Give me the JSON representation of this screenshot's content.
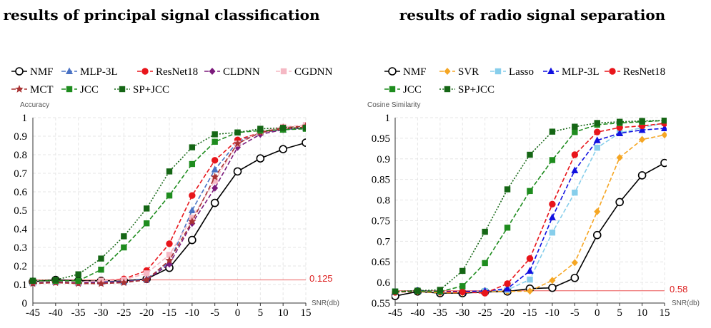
{
  "chart_data": [
    {
      "type": "line",
      "title": "results of principal signal classification",
      "ylabel": "Accuracy",
      "xlabel": "SNR(db)",
      "x": [
        -45,
        -40,
        -35,
        -30,
        -25,
        -20,
        -15,
        -10,
        -5,
        0,
        5,
        10,
        15
      ],
      "xticks": [
        "-45",
        "-40",
        "-35",
        "-30",
        "-25",
        "-20",
        "-15",
        "-10",
        "-5",
        "0",
        "5",
        "10",
        "15"
      ],
      "yticks": [
        "0",
        "0.1",
        "0.2",
        "0.3",
        "0.4",
        "0.5",
        "0.6",
        "0.7",
        "0.8",
        "0.9",
        "1"
      ],
      "xlim": [
        -45,
        15
      ],
      "ylim": [
        0,
        1
      ],
      "grid": true,
      "legend_position": "top",
      "reference_line": {
        "value": 0.125,
        "label": "0.125",
        "color": "#f08080"
      },
      "series": [
        {
          "name": "NMF",
          "color": "#000000",
          "dash": "solid",
          "marker": "circle-open",
          "values": [
            0.115,
            0.125,
            0.12,
            0.12,
            0.12,
            0.13,
            0.19,
            0.34,
            0.54,
            0.71,
            0.78,
            0.83,
            0.865
          ]
        },
        {
          "name": "MLP-3L",
          "color": "#4a72c4",
          "dash": "dashed",
          "marker": "triangle",
          "values": [
            0.11,
            0.115,
            0.11,
            0.115,
            0.115,
            0.13,
            0.22,
            0.5,
            0.72,
            0.87,
            0.92,
            0.935,
            0.945
          ]
        },
        {
          "name": "ResNet18",
          "color": "#e8151b",
          "dash": "dashed",
          "marker": "circle",
          "values": [
            0.115,
            0.12,
            0.115,
            0.12,
            0.13,
            0.175,
            0.32,
            0.58,
            0.77,
            0.88,
            0.92,
            0.94,
            0.95
          ]
        },
        {
          "name": "CLDNN",
          "color": "#7b1a7b",
          "dash": "dashed",
          "marker": "diamond",
          "values": [
            0.11,
            0.115,
            0.11,
            0.11,
            0.115,
            0.125,
            0.21,
            0.43,
            0.62,
            0.84,
            0.91,
            0.935,
            0.945
          ]
        },
        {
          "name": "CGDNN",
          "color": "#f5b8c4",
          "dash": "dashed",
          "marker": "square",
          "values": [
            0.115,
            0.12,
            0.115,
            0.12,
            0.125,
            0.16,
            0.26,
            0.46,
            0.66,
            0.86,
            0.925,
            0.95,
            0.96
          ]
        },
        {
          "name": "MCT",
          "color": "#a83232",
          "dash": "dashed",
          "marker": "star",
          "values": [
            0.105,
            0.11,
            0.105,
            0.105,
            0.11,
            0.125,
            0.23,
            0.44,
            0.68,
            0.86,
            0.92,
            0.945,
            0.955
          ]
        },
        {
          "name": "JCC",
          "color": "#1e8c1e",
          "dash": "dashed",
          "marker": "square",
          "values": [
            0.12,
            0.12,
            0.12,
            0.18,
            0.3,
            0.43,
            0.58,
            0.75,
            0.87,
            0.92,
            0.93,
            0.935,
            0.94
          ]
        },
        {
          "name": "SP+JCC",
          "color": "#156615",
          "dash": "dotted",
          "marker": "square",
          "values": [
            0.12,
            0.125,
            0.155,
            0.24,
            0.36,
            0.51,
            0.71,
            0.84,
            0.91,
            0.92,
            0.94,
            0.945,
            0.945
          ]
        }
      ]
    },
    {
      "type": "line",
      "title": "results of radio signal separation",
      "ylabel": "Cosine Similarity",
      "xlabel": "SNR(db)",
      "x": [
        -45,
        -40,
        -35,
        -30,
        -25,
        -20,
        -15,
        -10,
        -5,
        0,
        5,
        10,
        15
      ],
      "xticks": [
        "-45",
        "-40",
        "-35",
        "-30",
        "-25",
        "-20",
        "-15",
        "-10",
        "-5",
        "0",
        "5",
        "10",
        "15"
      ],
      "yticks": [
        "0.55",
        "0.6",
        "0.65",
        "0.7",
        "0.75",
        "0.8",
        "0.85",
        "0.9",
        "0.95",
        "1"
      ],
      "xlim": [
        -45,
        15
      ],
      "ylim": [
        0.55,
        1
      ],
      "grid": true,
      "legend_position": "top",
      "reference_line": {
        "value": 0.58,
        "label": "0.58",
        "color": "#f08080"
      },
      "series": [
        {
          "name": "NMF",
          "color": "#000000",
          "dash": "solid",
          "marker": "circle-open",
          "values": [
            0.567,
            0.578,
            0.574,
            0.574,
            0.577,
            0.578,
            0.585,
            0.587,
            0.611,
            0.715,
            0.795,
            0.86,
            0.89
          ]
        },
        {
          "name": "SVR",
          "color": "#f5a623",
          "dash": "dashed",
          "marker": "diamond",
          "values": [
            0.577,
            0.578,
            0.575,
            0.575,
            0.578,
            0.578,
            0.579,
            0.605,
            0.648,
            0.772,
            0.903,
            0.947,
            0.958
          ]
        },
        {
          "name": "Lasso",
          "color": "#87ceeb",
          "dash": "dashed",
          "marker": "square",
          "values": [
            0.578,
            0.579,
            0.577,
            0.578,
            0.579,
            0.582,
            0.607,
            0.721,
            0.818,
            0.927,
            0.963,
            0.976,
            0.987
          ]
        },
        {
          "name": "MLP-3L",
          "color": "#1010e0",
          "dash": "dashed",
          "marker": "triangle",
          "values": [
            0.577,
            0.58,
            0.578,
            0.578,
            0.579,
            0.585,
            0.628,
            0.758,
            0.872,
            0.945,
            0.962,
            0.97,
            0.974
          ]
        },
        {
          "name": "ResNet18",
          "color": "#e8151b",
          "dash": "dashed",
          "marker": "circle",
          "values": [
            0.576,
            0.579,
            0.577,
            0.577,
            0.574,
            0.597,
            0.658,
            0.79,
            0.91,
            0.965,
            0.976,
            0.98,
            0.986
          ]
        },
        {
          "name": "JCC",
          "color": "#1e8c1e",
          "dash": "dashed",
          "marker": "square",
          "values": [
            0.578,
            0.579,
            0.578,
            0.591,
            0.647,
            0.733,
            0.822,
            0.897,
            0.965,
            0.983,
            0.987,
            0.99,
            0.993
          ]
        },
        {
          "name": "SP+JCC",
          "color": "#156615",
          "dash": "dotted",
          "marker": "square",
          "values": [
            0.578,
            0.58,
            0.582,
            0.628,
            0.723,
            0.826,
            0.91,
            0.966,
            0.978,
            0.987,
            0.99,
            0.992,
            0.993
          ]
        }
      ]
    }
  ]
}
